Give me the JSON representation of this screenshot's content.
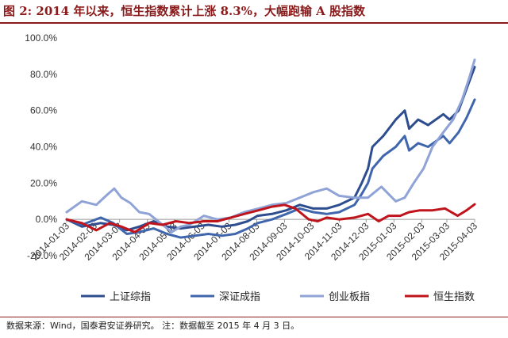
{
  "figure": {
    "title": "图 2: 2014 年以来，恒生指数累计上涨 8.3%，大幅跑输 A 股指数",
    "source": "数据来源：Wind，国泰君安证券研究。 注：数据截至 2015 年 4 月 3 日。"
  },
  "colors": {
    "title": "#8b1a1a",
    "rule": "#8b1a1a"
  },
  "chart_data": {
    "type": "line",
    "title": "",
    "xlabel": "",
    "ylabel": "",
    "ylim": [
      -20,
      100
    ],
    "y_ticks": [
      "-20.0%",
      "0.0%",
      "20.0%",
      "40.0%",
      "60.0%",
      "80.0%",
      "100.0%"
    ],
    "x_ticks": [
      "2014-01-03",
      "2014-02-03",
      "2014-03-03",
      "2014-04-03",
      "2014-05-03",
      "2014-06-03",
      "2014-07-03",
      "2014-08-03",
      "2014-09-03",
      "2014-10-03",
      "2014-11-03",
      "2014-12-03",
      "2015-01-03",
      "2015-02-03",
      "2015-03-03",
      "2015-04-03"
    ],
    "grid": false,
    "legend_position": "bottom",
    "x_start": "2014-01-03",
    "x_end": "2015-04-03",
    "series": [
      {
        "name": "上证综指",
        "color": "#2e4d8f",
        "points": [
          [
            "2014-01-03",
            0
          ],
          [
            "2014-01-20",
            -4
          ],
          [
            "2014-02-10",
            -2
          ],
          [
            "2014-02-24",
            -3
          ],
          [
            "2014-03-11",
            -6
          ],
          [
            "2014-03-25",
            -4
          ],
          [
            "2014-04-10",
            -1
          ],
          [
            "2014-04-25",
            -4
          ],
          [
            "2014-05-10",
            -5
          ],
          [
            "2014-05-26",
            -4
          ],
          [
            "2014-06-10",
            -3
          ],
          [
            "2014-06-25",
            -4
          ],
          [
            "2014-07-10",
            -3
          ],
          [
            "2014-07-24",
            -1
          ],
          [
            "2014-08-04",
            2
          ],
          [
            "2014-08-20",
            3
          ],
          [
            "2014-09-05",
            5
          ],
          [
            "2014-09-20",
            8
          ],
          [
            "2014-10-05",
            6
          ],
          [
            "2014-10-20",
            6
          ],
          [
            "2014-11-03",
            8
          ],
          [
            "2014-11-20",
            12
          ],
          [
            "2014-11-28",
            20
          ],
          [
            "2014-12-05",
            28
          ],
          [
            "2014-12-10",
            40
          ],
          [
            "2014-12-22",
            46
          ],
          [
            "2015-01-05",
            55
          ],
          [
            "2015-01-15",
            60
          ],
          [
            "2015-01-20",
            50
          ],
          [
            "2015-01-30",
            55
          ],
          [
            "2015-02-10",
            52
          ],
          [
            "2015-02-27",
            58
          ],
          [
            "2015-03-06",
            55
          ],
          [
            "2015-03-16",
            60
          ],
          [
            "2015-03-25",
            72
          ],
          [
            "2015-04-03",
            84
          ]
        ]
      },
      {
        "name": "深证成指",
        "color": "#3f65ad",
        "points": [
          [
            "2014-01-03",
            0
          ],
          [
            "2014-01-20",
            -3
          ],
          [
            "2014-02-10",
            1
          ],
          [
            "2014-02-24",
            -2
          ],
          [
            "2014-03-11",
            -8
          ],
          [
            "2014-03-25",
            -7
          ],
          [
            "2014-04-10",
            -5
          ],
          [
            "2014-04-25",
            -8
          ],
          [
            "2014-05-10",
            -10
          ],
          [
            "2014-05-26",
            -9
          ],
          [
            "2014-06-10",
            -8
          ],
          [
            "2014-06-25",
            -9
          ],
          [
            "2014-07-10",
            -8
          ],
          [
            "2014-07-24",
            -5
          ],
          [
            "2014-08-04",
            -2
          ],
          [
            "2014-08-20",
            0
          ],
          [
            "2014-09-05",
            3
          ],
          [
            "2014-09-20",
            6
          ],
          [
            "2014-10-05",
            4
          ],
          [
            "2014-10-20",
            3
          ],
          [
            "2014-11-03",
            4
          ],
          [
            "2014-11-20",
            8
          ],
          [
            "2014-11-28",
            14
          ],
          [
            "2014-12-05",
            20
          ],
          [
            "2014-12-10",
            28
          ],
          [
            "2014-12-22",
            35
          ],
          [
            "2015-01-05",
            40
          ],
          [
            "2015-01-15",
            46
          ],
          [
            "2015-01-20",
            38
          ],
          [
            "2015-01-30",
            42
          ],
          [
            "2015-02-10",
            40
          ],
          [
            "2015-02-27",
            46
          ],
          [
            "2015-03-06",
            42
          ],
          [
            "2015-03-16",
            48
          ],
          [
            "2015-03-25",
            56
          ],
          [
            "2015-04-03",
            66
          ]
        ]
      },
      {
        "name": "创业板指",
        "color": "#8fa3d6",
        "points": [
          [
            "2014-01-03",
            4
          ],
          [
            "2014-01-20",
            10
          ],
          [
            "2014-02-05",
            8
          ],
          [
            "2014-02-18",
            14
          ],
          [
            "2014-02-25",
            17
          ],
          [
            "2014-03-05",
            12
          ],
          [
            "2014-03-15",
            9
          ],
          [
            "2014-03-25",
            4
          ],
          [
            "2014-04-05",
            3
          ],
          [
            "2014-04-20",
            -3
          ],
          [
            "2014-04-30",
            -7
          ],
          [
            "2014-05-10",
            -4
          ],
          [
            "2014-05-20",
            -3
          ],
          [
            "2014-06-05",
            2
          ],
          [
            "2014-06-20",
            0
          ],
          [
            "2014-07-05",
            1
          ],
          [
            "2014-07-20",
            4
          ],
          [
            "2014-08-05",
            6
          ],
          [
            "2014-08-20",
            8
          ],
          [
            "2014-09-05",
            9
          ],
          [
            "2014-09-20",
            12
          ],
          [
            "2014-10-05",
            15
          ],
          [
            "2014-10-20",
            17
          ],
          [
            "2014-11-03",
            13
          ],
          [
            "2014-11-20",
            12
          ],
          [
            "2014-12-05",
            12
          ],
          [
            "2014-12-20",
            18
          ],
          [
            "2015-01-05",
            10
          ],
          [
            "2015-01-15",
            12
          ],
          [
            "2015-01-25",
            20
          ],
          [
            "2015-02-05",
            28
          ],
          [
            "2015-02-15",
            40
          ],
          [
            "2015-02-27",
            48
          ],
          [
            "2015-03-10",
            55
          ],
          [
            "2015-03-20",
            66
          ],
          [
            "2015-03-28",
            78
          ],
          [
            "2015-04-03",
            88
          ]
        ]
      },
      {
        "name": "恒生指数",
        "color": "#c0141c",
        "points": [
          [
            "2014-01-03",
            0
          ],
          [
            "2014-01-20",
            -2
          ],
          [
            "2014-02-05",
            -6
          ],
          [
            "2014-02-20",
            -2
          ],
          [
            "2014-03-05",
            -4
          ],
          [
            "2014-03-20",
            -7
          ],
          [
            "2014-04-05",
            -2
          ],
          [
            "2014-04-20",
            -3
          ],
          [
            "2014-05-05",
            -1
          ],
          [
            "2014-05-20",
            -2
          ],
          [
            "2014-06-05",
            -1
          ],
          [
            "2014-06-20",
            -1
          ],
          [
            "2014-07-05",
            1
          ],
          [
            "2014-07-20",
            3
          ],
          [
            "2014-08-05",
            5
          ],
          [
            "2014-08-20",
            7
          ],
          [
            "2014-09-03",
            8
          ],
          [
            "2014-09-15",
            6
          ],
          [
            "2014-09-30",
            0
          ],
          [
            "2014-10-10",
            -1
          ],
          [
            "2014-10-20",
            1
          ],
          [
            "2014-11-03",
            0
          ],
          [
            "2014-11-20",
            1
          ],
          [
            "2014-12-05",
            3
          ],
          [
            "2014-12-17",
            -1
          ],
          [
            "2014-12-28",
            2
          ],
          [
            "2015-01-10",
            2
          ],
          [
            "2015-01-20",
            4
          ],
          [
            "2015-02-01",
            5
          ],
          [
            "2015-02-15",
            5
          ],
          [
            "2015-03-01",
            6
          ],
          [
            "2015-03-15",
            2
          ],
          [
            "2015-03-25",
            5
          ],
          [
            "2015-04-03",
            8.3
          ]
        ]
      }
    ]
  }
}
